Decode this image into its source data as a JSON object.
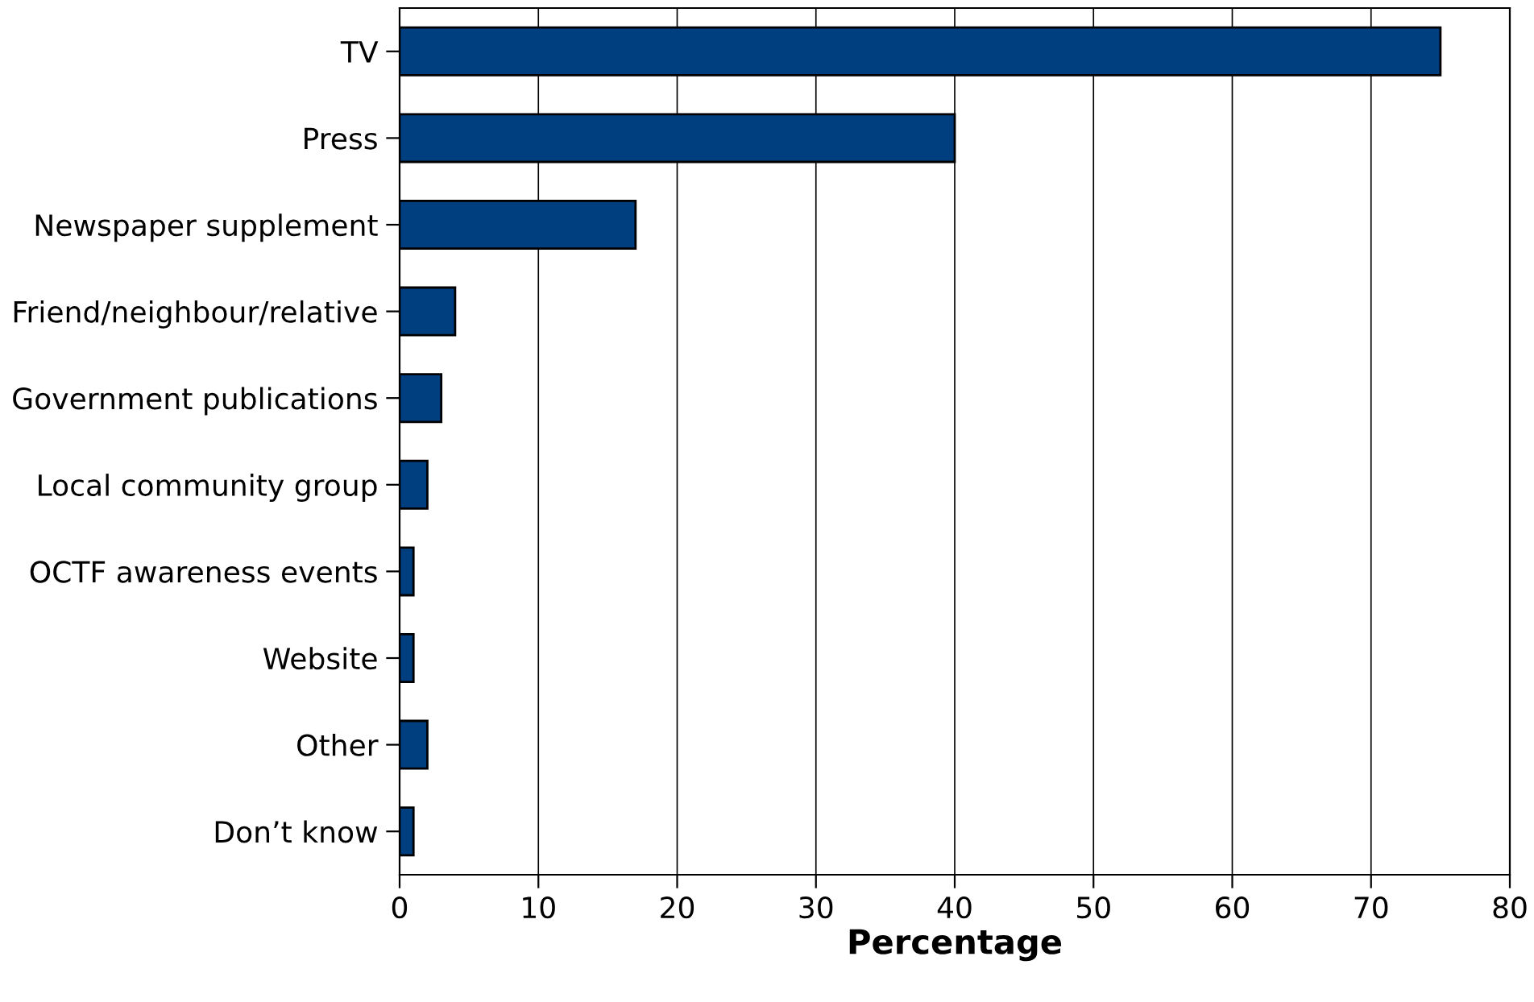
{
  "chart_data": {
    "type": "bar",
    "orientation": "horizontal",
    "xlabel": "Percentage",
    "categories": [
      "TV",
      "Press",
      "Newspaper supplement",
      "Friend/neighbour/relative",
      "Government publications",
      "Local community group",
      "OCTF awareness events",
      "Website",
      "Other",
      "Don’t know"
    ],
    "values": [
      75,
      40,
      17,
      4,
      3,
      2,
      1,
      1,
      2,
      1
    ],
    "color": "#003f7f",
    "xlim": [
      0,
      80
    ],
    "xticks": [
      0,
      10,
      20,
      30,
      40,
      50,
      60,
      70,
      80
    ],
    "grid": "x"
  }
}
